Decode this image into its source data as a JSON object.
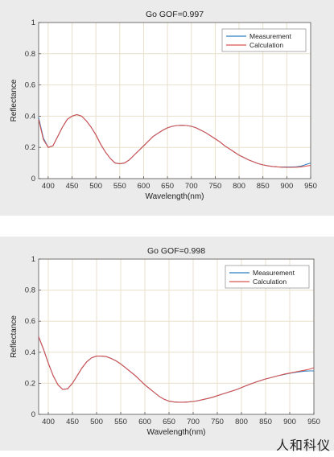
{
  "chart_data": [
    {
      "type": "line",
      "title": "Go GOF=0.997",
      "xlabel": "Wavelength(nm)",
      "ylabel": "Reflectance",
      "xlim": [
        380,
        950
      ],
      "ylim": [
        0,
        1
      ],
      "xticks": [
        400,
        450,
        500,
        550,
        600,
        650,
        700,
        750,
        800,
        850,
        900,
        950
      ],
      "yticks": [
        0,
        0.2,
        0.4,
        0.6,
        0.8,
        1
      ],
      "grid": true,
      "legend_position": "top-right",
      "series": [
        {
          "name": "Measurement",
          "color": "#2f7fc1",
          "x": [
            380,
            390,
            400,
            410,
            420,
            430,
            440,
            450,
            460,
            470,
            480,
            490,
            500,
            510,
            520,
            530,
            540,
            550,
            560,
            570,
            580,
            590,
            600,
            610,
            620,
            630,
            640,
            650,
            660,
            670,
            680,
            690,
            700,
            710,
            720,
            730,
            740,
            750,
            760,
            770,
            780,
            790,
            800,
            810,
            820,
            830,
            840,
            850,
            860,
            870,
            880,
            890,
            900,
            910,
            920,
            930,
            940,
            950
          ],
          "y": [
            0.39,
            0.26,
            0.2,
            0.21,
            0.27,
            0.33,
            0.38,
            0.4,
            0.41,
            0.4,
            0.37,
            0.33,
            0.28,
            0.22,
            0.17,
            0.13,
            0.1,
            0.095,
            0.1,
            0.12,
            0.15,
            0.18,
            0.21,
            0.24,
            0.27,
            0.29,
            0.31,
            0.325,
            0.335,
            0.34,
            0.342,
            0.34,
            0.335,
            0.325,
            0.31,
            0.295,
            0.275,
            0.255,
            0.235,
            0.21,
            0.19,
            0.17,
            0.15,
            0.135,
            0.12,
            0.108,
            0.096,
            0.088,
            0.082,
            0.078,
            0.075,
            0.074,
            0.074,
            0.074,
            0.076,
            0.08,
            0.09,
            0.1
          ]
        },
        {
          "name": "Calculation",
          "color": "#d9534f",
          "x": [
            380,
            390,
            400,
            410,
            420,
            430,
            440,
            450,
            460,
            470,
            480,
            490,
            500,
            510,
            520,
            530,
            540,
            550,
            560,
            570,
            580,
            590,
            600,
            610,
            620,
            630,
            640,
            650,
            660,
            670,
            680,
            690,
            700,
            710,
            720,
            730,
            740,
            750,
            760,
            770,
            780,
            790,
            800,
            810,
            820,
            830,
            840,
            850,
            860,
            870,
            880,
            890,
            900,
            910,
            920,
            930,
            940,
            950
          ],
          "y": [
            0.38,
            0.25,
            0.2,
            0.21,
            0.27,
            0.33,
            0.38,
            0.4,
            0.41,
            0.4,
            0.37,
            0.33,
            0.28,
            0.22,
            0.17,
            0.13,
            0.1,
            0.095,
            0.1,
            0.12,
            0.15,
            0.18,
            0.21,
            0.24,
            0.27,
            0.29,
            0.31,
            0.325,
            0.335,
            0.34,
            0.342,
            0.34,
            0.335,
            0.325,
            0.31,
            0.295,
            0.275,
            0.255,
            0.235,
            0.21,
            0.19,
            0.17,
            0.15,
            0.135,
            0.12,
            0.108,
            0.096,
            0.088,
            0.082,
            0.078,
            0.075,
            0.073,
            0.072,
            0.072,
            0.073,
            0.075,
            0.08,
            0.085
          ]
        }
      ]
    },
    {
      "type": "line",
      "title": "Go GOF=0.998",
      "xlabel": "Wavelength(nm)",
      "ylabel": "Reflectance",
      "xlim": [
        380,
        950
      ],
      "ylim": [
        0,
        1
      ],
      "xticks": [
        400,
        450,
        500,
        550,
        600,
        650,
        700,
        750,
        800,
        850,
        900,
        950
      ],
      "yticks": [
        0,
        0.2,
        0.4,
        0.6,
        0.8,
        1
      ],
      "grid": true,
      "legend_position": "top-right",
      "series": [
        {
          "name": "Measurement",
          "color": "#2f7fc1",
          "x": [
            380,
            390,
            400,
            410,
            420,
            430,
            440,
            450,
            460,
            470,
            480,
            490,
            500,
            510,
            520,
            530,
            540,
            550,
            560,
            570,
            580,
            590,
            600,
            610,
            620,
            630,
            640,
            650,
            660,
            670,
            680,
            690,
            700,
            710,
            720,
            730,
            740,
            750,
            760,
            770,
            780,
            790,
            800,
            810,
            820,
            830,
            840,
            850,
            860,
            870,
            880,
            890,
            900,
            910,
            920,
            930,
            940,
            950
          ],
          "y": [
            0.5,
            0.42,
            0.33,
            0.25,
            0.19,
            0.16,
            0.165,
            0.2,
            0.25,
            0.3,
            0.34,
            0.365,
            0.375,
            0.375,
            0.372,
            0.36,
            0.345,
            0.325,
            0.3,
            0.275,
            0.25,
            0.22,
            0.19,
            0.165,
            0.14,
            0.115,
            0.097,
            0.085,
            0.08,
            0.078,
            0.078,
            0.08,
            0.083,
            0.088,
            0.095,
            0.102,
            0.11,
            0.12,
            0.13,
            0.14,
            0.15,
            0.16,
            0.172,
            0.185,
            0.197,
            0.208,
            0.218,
            0.228,
            0.236,
            0.244,
            0.252,
            0.258,
            0.264,
            0.27,
            0.274,
            0.278,
            0.28,
            0.28
          ]
        },
        {
          "name": "Calculation",
          "color": "#d9534f",
          "x": [
            380,
            390,
            400,
            410,
            420,
            430,
            440,
            450,
            460,
            470,
            480,
            490,
            500,
            510,
            520,
            530,
            540,
            550,
            560,
            570,
            580,
            590,
            600,
            610,
            620,
            630,
            640,
            650,
            660,
            670,
            680,
            690,
            700,
            710,
            720,
            730,
            740,
            750,
            760,
            770,
            780,
            790,
            800,
            810,
            820,
            830,
            840,
            850,
            860,
            870,
            880,
            890,
            900,
            910,
            920,
            930,
            940,
            950
          ],
          "y": [
            0.5,
            0.42,
            0.33,
            0.25,
            0.19,
            0.16,
            0.165,
            0.2,
            0.25,
            0.3,
            0.34,
            0.365,
            0.375,
            0.375,
            0.372,
            0.36,
            0.345,
            0.325,
            0.3,
            0.275,
            0.25,
            0.22,
            0.19,
            0.165,
            0.14,
            0.115,
            0.097,
            0.085,
            0.08,
            0.078,
            0.078,
            0.08,
            0.083,
            0.088,
            0.095,
            0.102,
            0.11,
            0.12,
            0.13,
            0.14,
            0.15,
            0.16,
            0.172,
            0.185,
            0.197,
            0.208,
            0.218,
            0.228,
            0.236,
            0.244,
            0.252,
            0.26,
            0.266,
            0.272,
            0.278,
            0.284,
            0.29,
            0.3
          ]
        }
      ]
    }
  ],
  "watermark": "人和科仪"
}
